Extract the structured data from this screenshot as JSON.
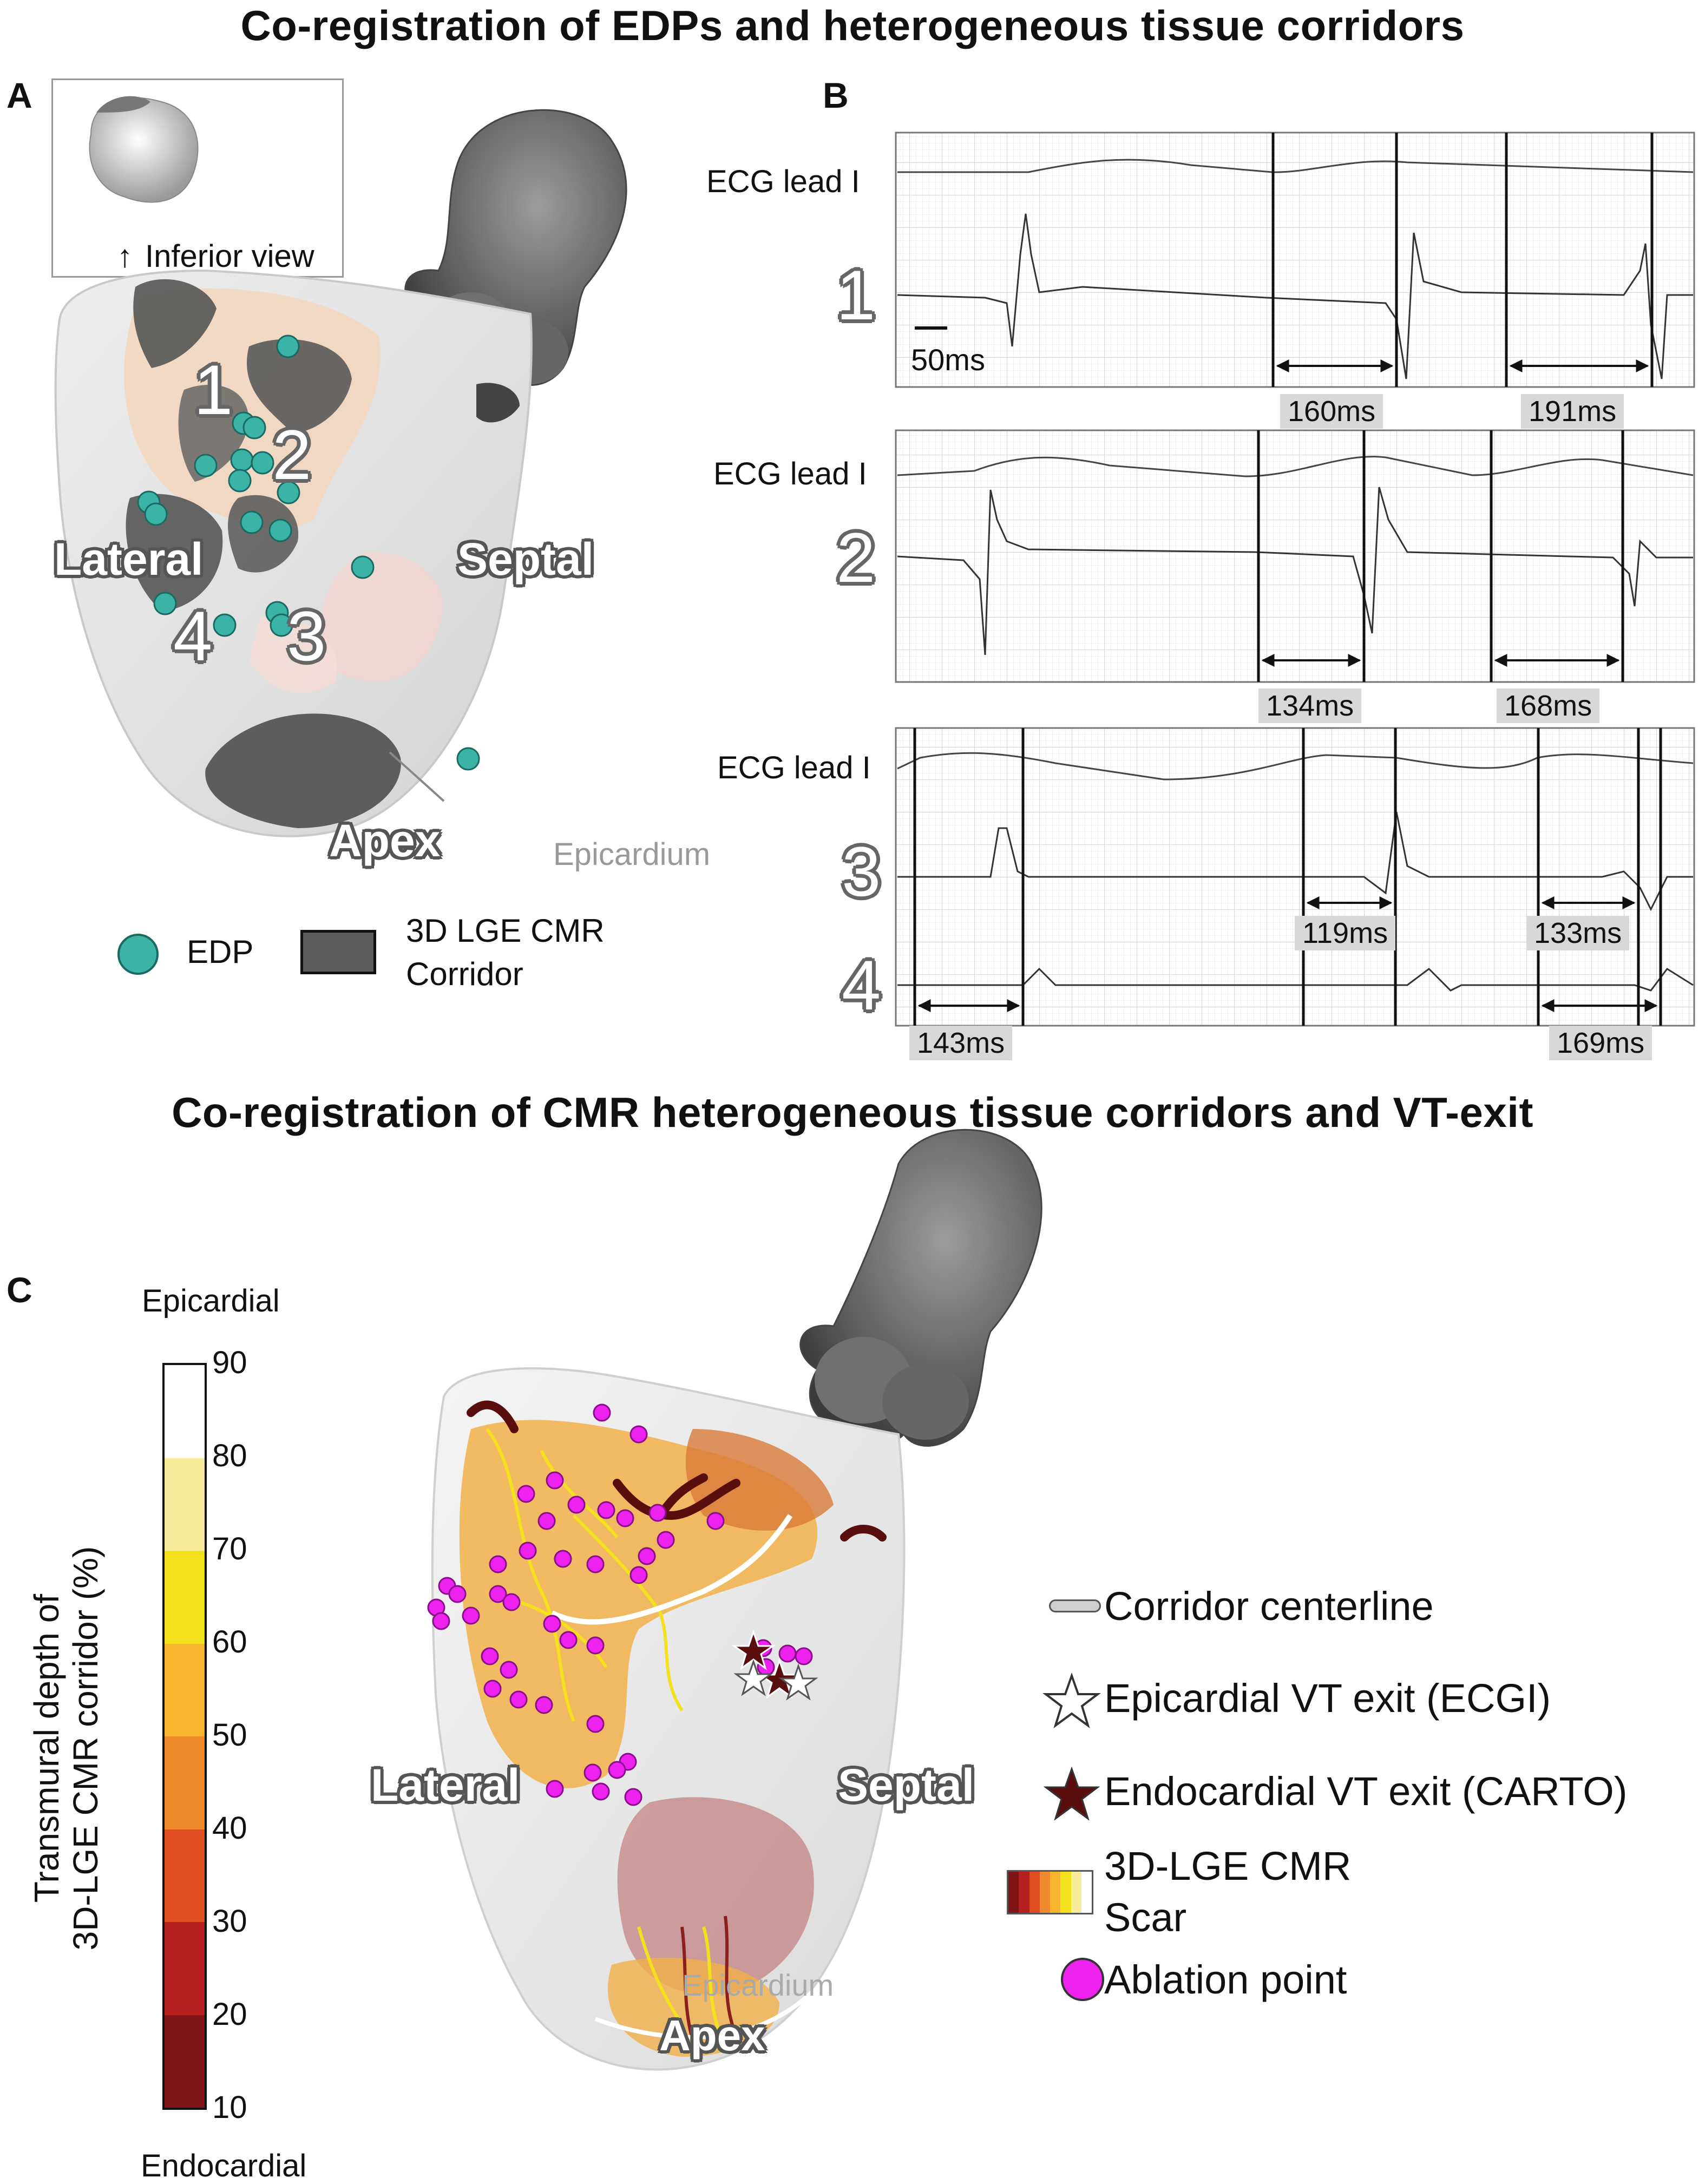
{
  "panel_top": {
    "title": "Co-registration of EDPs and heterogeneous tissue corridors",
    "label_a": "A",
    "label_b": "B",
    "inset_caption": "Inferior view",
    "inset_arrow": "↑",
    "region_labels": {
      "lateral": "Lateral",
      "septal": "Septal",
      "apex": "Apex",
      "epicardium": "Epicardium"
    },
    "corridor_numbers": [
      "1",
      "2",
      "3",
      "4"
    ],
    "legend": {
      "edp": "EDP",
      "corridor_line1": "3D LGE CMR",
      "corridor_line2": "Corridor"
    },
    "colors": {
      "edp": "#3bb3a7",
      "corridor": "#555555"
    }
  },
  "ecg": {
    "lead_label": "ECG lead I",
    "scale_bar": "50ms",
    "blocks": [
      {
        "number": "1",
        "durations": [
          "160ms",
          "191ms"
        ]
      },
      {
        "number": "2",
        "durations": [
          "134ms",
          "168ms"
        ]
      },
      {
        "number": "3",
        "durations": [
          "119ms",
          "133ms"
        ]
      },
      {
        "number": "4",
        "durations": [
          "143ms",
          "169ms"
        ]
      }
    ]
  },
  "panel_bottom": {
    "title": "Co-registration of CMR heterogeneous tissue corridors and VT-exit",
    "label_c": "C",
    "colorbar": {
      "top_label": "Epicardial",
      "bottom_label": "Endocardial",
      "axis_line1": "Transmural depth of",
      "axis_line2": "3D-LGE CMR corridor (%)",
      "ticks": [
        "90",
        "80",
        "70",
        "60",
        "50",
        "40",
        "30",
        "20",
        "10"
      ],
      "colors": [
        "#ffffff",
        "#f7ec9a",
        "#f2e11c",
        "#f6b52c",
        "#ee8a2c",
        "#e24e24",
        "#b72020",
        "#7e1414"
      ]
    },
    "region_labels": {
      "lateral": "Lateral",
      "septal": "Septal",
      "apex": "Apex",
      "epicardium": "Epicardium"
    },
    "legend": {
      "centerline": "Corridor centerline",
      "epi_exit": "Epicardial VT exit (ECGI)",
      "endo_exit": "Endocardial VT exit (CARTO)",
      "scar_line1": "3D-LGE CMR",
      "scar_line2": "Scar",
      "ablation": "Ablation point"
    },
    "colors": {
      "ablation": "#ee22ee",
      "endo_star": "#5a0d0d"
    }
  }
}
